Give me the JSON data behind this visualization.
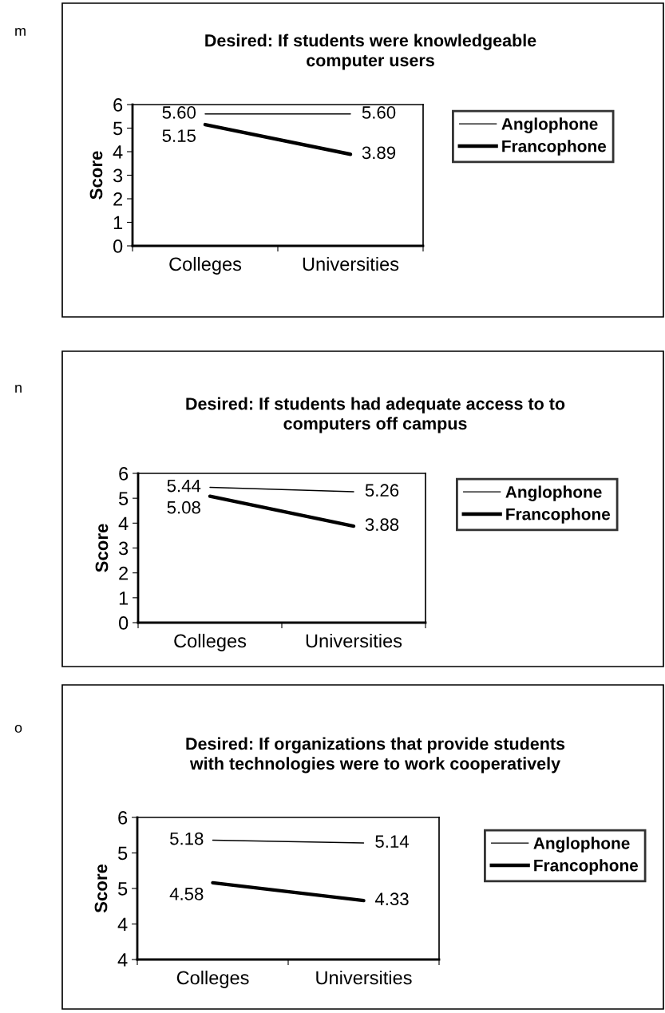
{
  "chart_data": [
    {
      "type": "line",
      "title": "Desired: If students were knowledgeable\ncomputer users",
      "ylabel": "Score",
      "categories": [
        "Colleges",
        "Universities"
      ],
      "series": [
        {
          "name": "Anglophone",
          "color": "#000000",
          "values": [
            5.6,
            5.6
          ],
          "value_labels": [
            "5.60",
            "5.60"
          ]
        },
        {
          "name": "Francophone",
          "color": "#000000",
          "values": [
            5.15,
            3.89
          ],
          "value_labels": [
            "5.15",
            "3.89"
          ]
        }
      ],
      "ylim": [
        0,
        6
      ],
      "yticks": [
        0,
        1,
        2,
        3,
        4,
        5,
        6
      ],
      "grid": false,
      "legend": "right",
      "marker": "none",
      "line_style": "solid",
      "annotations": [
        "m"
      ]
    },
    {
      "type": "line",
      "title": "Desired: If students had adequate access to to\ncomputers off campus",
      "ylabel": "Score",
      "categories": [
        "Colleges",
        "Universities"
      ],
      "series": [
        {
          "name": "Anglophone",
          "color": "#000000",
          "values": [
            5.44,
            5.26
          ],
          "value_labels": [
            "5.44",
            "5.26"
          ]
        },
        {
          "name": "Francophone",
          "color": "#000000",
          "values": [
            5.08,
            3.88
          ],
          "value_labels": [
            "5.08",
            "3.88"
          ]
        }
      ],
      "ylim": [
        0,
        6
      ],
      "yticks": [
        0,
        1,
        2,
        3,
        4,
        5,
        6
      ],
      "grid": false,
      "legend": "right",
      "marker": "none",
      "line_style": "solid",
      "annotations": [
        "n"
      ]
    },
    {
      "type": "line",
      "title": "Desired: If organizations that provide students\nwith technologies were to work cooperatively",
      "ylabel": "Score",
      "categories": [
        "Colleges",
        "Universities"
      ],
      "series": [
        {
          "name": "Anglophone",
          "color": "#000000",
          "values": [
            5.18,
            5.14
          ],
          "value_labels": [
            "5.18",
            "5.14"
          ]
        },
        {
          "name": "Francophone",
          "color": "#000000",
          "values": [
            4.58,
            4.33
          ],
          "value_labels": [
            "4.58",
            "4.33"
          ]
        }
      ],
      "ylim": [
        3.5,
        5.5
      ],
      "yticks": [
        {
          "value": 3.5,
          "label": "4"
        },
        {
          "value": 4.0,
          "label": "4"
        },
        {
          "value": 4.5,
          "label": "5"
        },
        {
          "value": 5.0,
          "label": "5"
        },
        {
          "value": 5.5,
          "label": "6"
        }
      ],
      "grid": false,
      "legend": "right",
      "marker": "none",
      "line_style": "solid",
      "annotations": [
        "o"
      ]
    }
  ]
}
